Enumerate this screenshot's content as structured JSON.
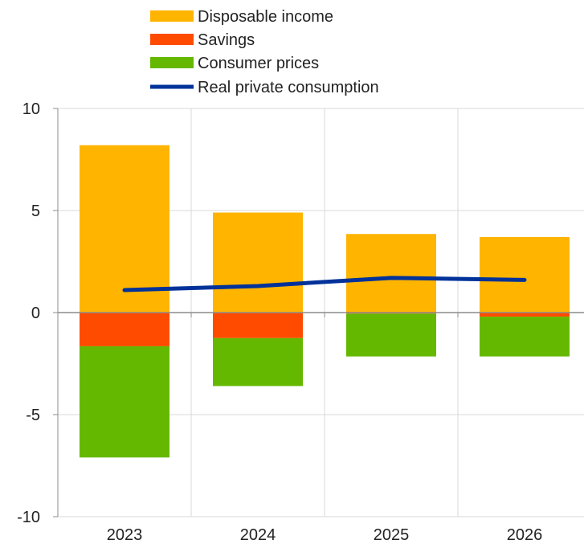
{
  "chart_data": {
    "type": "bar",
    "categories": [
      "2023",
      "2024",
      "2025",
      "2026"
    ],
    "ylim": [
      -10,
      10
    ],
    "y_ticks": [
      "10",
      "5",
      "0",
      "-5",
      "-10"
    ],
    "grid": true,
    "legend_placement": "top-left",
    "series": [
      {
        "name": "Disposable income",
        "color": "#FFB400",
        "kind": "bar",
        "values": [
          8.2,
          4.9,
          3.85,
          3.7
        ]
      },
      {
        "name": "Savings",
        "color": "#FF4B00",
        "kind": "bar",
        "values": [
          -1.65,
          -1.25,
          -0.05,
          -0.2
        ]
      },
      {
        "name": "Consumer prices",
        "color": "#65B800",
        "kind": "bar",
        "values": [
          -5.45,
          -2.35,
          -2.1,
          -1.95
        ]
      },
      {
        "name": "Real private consumption",
        "color": "#003299",
        "kind": "line",
        "values": [
          1.1,
          1.3,
          1.7,
          1.6
        ]
      }
    ]
  }
}
